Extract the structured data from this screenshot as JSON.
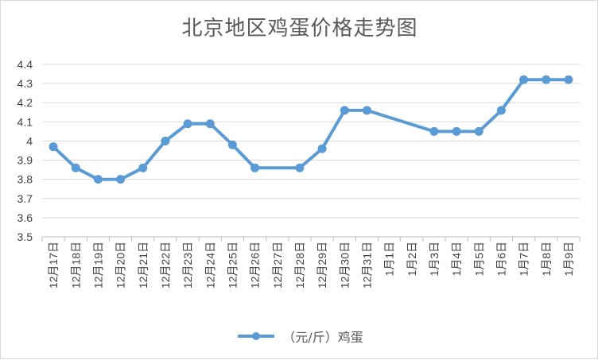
{
  "chart_data": {
    "type": "line",
    "title": "北京地区鸡蛋价格走势图",
    "xlabel": "",
    "ylabel": "",
    "ylim": [
      3.5,
      4.4
    ],
    "yticks": [
      "3.5",
      "3.6",
      "3.7",
      "3.8",
      "3.9",
      "4",
      "4.1",
      "4.2",
      "4.3",
      "4.4"
    ],
    "grid": true,
    "legend_position": "bottom",
    "categories": [
      "12月17日",
      "12月18日",
      "12月19日",
      "12月20日",
      "12月21日",
      "12月22日",
      "12月23日",
      "12月24日",
      "12月25日",
      "12月26日",
      "12月27日",
      "12月28日",
      "12月29日",
      "12月30日",
      "12月31日",
      "1月1日",
      "1月2日",
      "1月3日",
      "1月4日",
      "1月5日",
      "1月6日",
      "1月7日",
      "1月8日",
      "1月9日"
    ],
    "series": [
      {
        "name": "（元/斤）鸡蛋",
        "color": "#5b9bd5",
        "values": [
          3.97,
          3.86,
          3.8,
          3.8,
          3.86,
          4.0,
          4.09,
          4.09,
          3.98,
          3.86,
          null,
          3.86,
          3.96,
          4.16,
          4.16,
          null,
          null,
          4.05,
          4.05,
          4.05,
          4.16,
          4.32,
          4.32,
          4.32
        ]
      }
    ]
  }
}
